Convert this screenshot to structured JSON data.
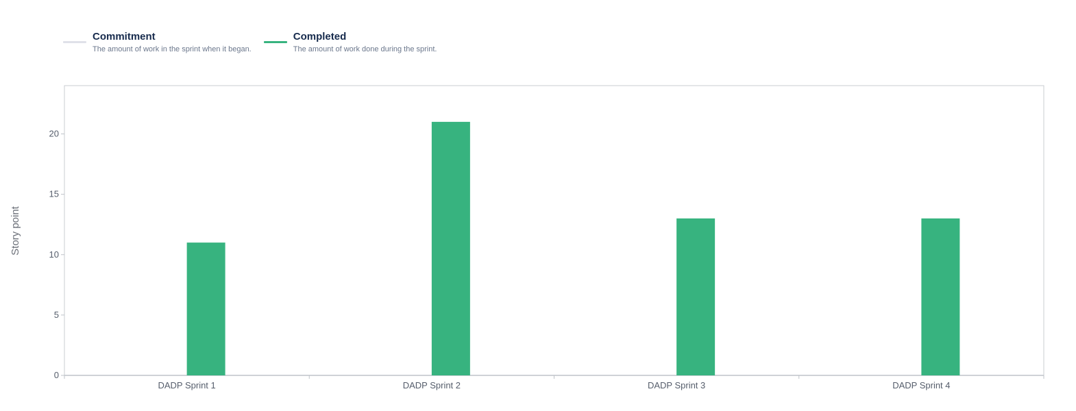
{
  "legend": {
    "commitment": {
      "title": "Commitment",
      "description": "The amount of work in the sprint when it began.",
      "color": "#dfe1e9"
    },
    "completed": {
      "title": "Completed",
      "description": "The amount of work done during the sprint.",
      "color": "#37b37f"
    }
  },
  "chart_data": {
    "type": "bar",
    "categories": [
      "DADP Sprint 1",
      "DADP Sprint 2",
      "DADP Sprint 3",
      "DADP Sprint 4"
    ],
    "series": [
      {
        "name": "Commitment",
        "values": [
          0,
          0,
          0,
          0
        ],
        "color": "#dfe1e9"
      },
      {
        "name": "Completed",
        "values": [
          11,
          21,
          13,
          13
        ],
        "color": "#37b37f"
      }
    ],
    "ylabel": "Story point",
    "xlabel": "",
    "ylim": [
      0,
      24
    ],
    "yticks": [
      0,
      5,
      10,
      15,
      20
    ],
    "grid": false,
    "legend_position": "top-left"
  }
}
